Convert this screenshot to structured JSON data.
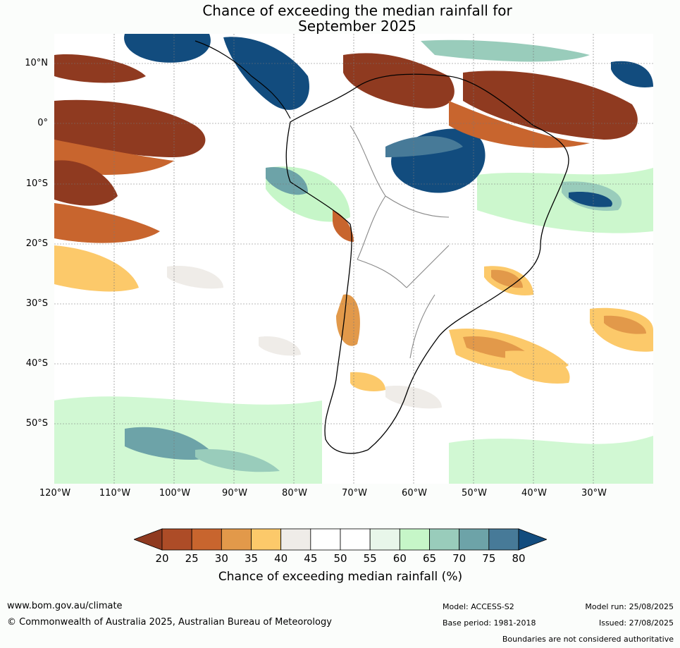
{
  "title": {
    "line1": "Chance of exceeding the median rainfall for",
    "line2": "September 2025"
  },
  "map": {
    "lat_labels": [
      "10°N",
      "0°",
      "10°S",
      "20°S",
      "30°S",
      "40°S",
      "50°S"
    ],
    "lon_labels": [
      "120°W",
      "110°W",
      "100°W",
      "90°W",
      "80°W",
      "70°W",
      "60°W",
      "50°W",
      "40°W",
      "30°W"
    ],
    "region": "South America",
    "colors": {
      "very_dry": "#8f3a20",
      "dry": "#c8652e",
      "slightly_dry": "#fcc96a",
      "neutral": "#efece8",
      "slightly_wet": "#c6f6c8",
      "wet": "#99ccbb",
      "very_wet": "#124c7e"
    }
  },
  "colorbar": {
    "ticks": [
      "20",
      "25",
      "30",
      "35",
      "40",
      "45",
      "50",
      "55",
      "60",
      "65",
      "70",
      "75",
      "80"
    ],
    "colors": [
      "#8f3a20",
      "#ad4c27",
      "#c8652e",
      "#e2994a",
      "#fcc96a",
      "#efece8",
      "#ffffff",
      "#ffffff",
      "#e8f6ea",
      "#c6f6c8",
      "#99ccbb",
      "#6da3a8",
      "#477a98",
      "#124c7e"
    ],
    "label": "Chance of exceeding median rainfall (%)"
  },
  "footer": {
    "url": "www.bom.gov.au/climate",
    "copyright": "© Commonwealth of Australia 2025, Australian Bureau of Meteorology",
    "model": "Model: ACCESS-S2",
    "base_period": "Base period: 1981-2018",
    "model_run": "Model run: 25/08/2025",
    "issued": "Issued: 27/08/2025",
    "disclaimer": "Boundaries are not considered authoritative"
  }
}
